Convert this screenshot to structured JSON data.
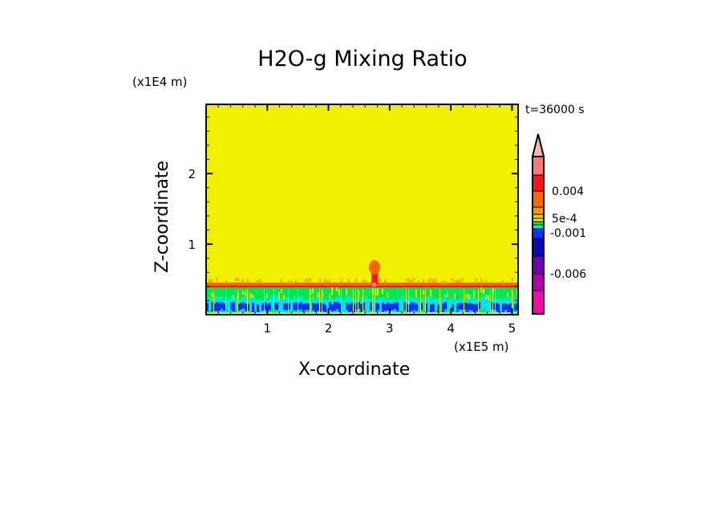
{
  "chart_data": {
    "type": "heatmap",
    "title": "H2O-g Mixing Ratio",
    "xlabel": "X-coordinate",
    "ylabel": "Z-coordinate",
    "x_unit": "(x1E5 m)",
    "y_unit": "(x1E4 m)",
    "time_label": "t=36000 s",
    "xlim": [
      0,
      5.1
    ],
    "ylim": [
      0,
      2.98
    ],
    "x_ticks": [
      "1",
      "2",
      "3",
      "4",
      "5"
    ],
    "x_tick_values": [
      1,
      2,
      3,
      4,
      5
    ],
    "y_ticks": [
      "1",
      "2"
    ],
    "y_tick_values": [
      1,
      2
    ],
    "colorbar": {
      "colors": [
        "#ff7878",
        "#ff1414",
        "#ff6400",
        "#ff9600",
        "#ffc800",
        "#f0f000",
        "#00e650",
        "#00e6e6",
        "#0a32ff",
        "#0a0ab4",
        "#7300aa",
        "#b400aa",
        "#f00aaa"
      ],
      "extend_color": "#ffb4b4",
      "labels": [
        "0.004",
        "5e-4",
        "-0.001",
        "-0.006"
      ]
    },
    "background_color": "#f0f000"
  }
}
